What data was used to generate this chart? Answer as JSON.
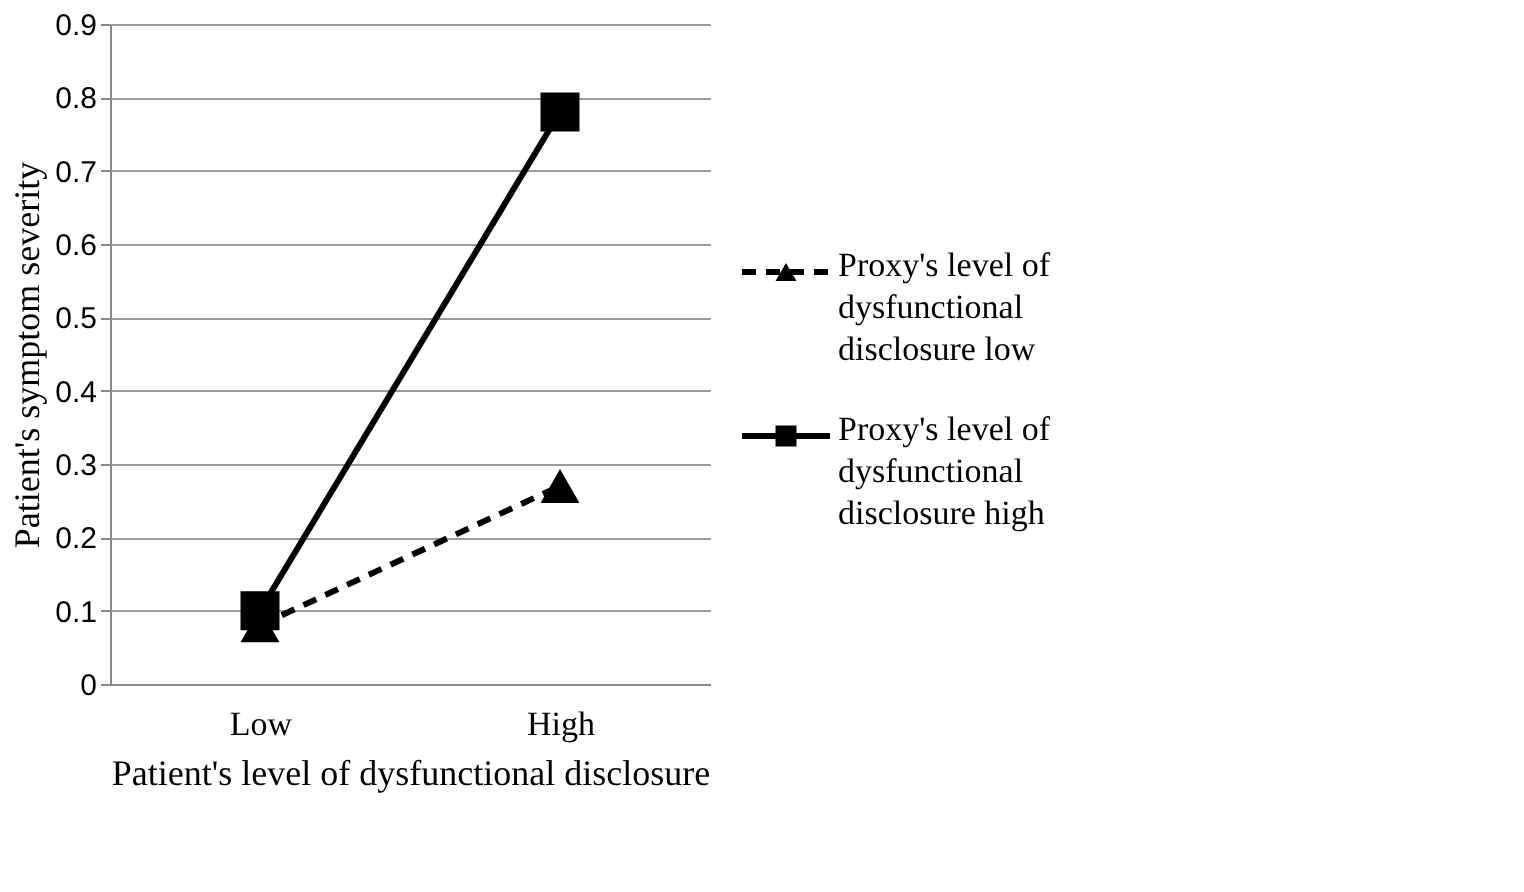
{
  "chart_data": {
    "type": "line",
    "xlabel": "Patient's level of dysfunctional disclosure",
    "ylabel": "Patient's symptom severity",
    "categories": [
      "Low",
      "High"
    ],
    "series": [
      {
        "name": "Proxy's level of dysfunctional disclosure low",
        "color": "#000000",
        "values": [
          0.08,
          0.27
        ],
        "marker": "triangle",
        "line_style": "dashed"
      },
      {
        "name": "Proxy's level of dysfunctional disclosure high",
        "color": "#000000",
        "values": [
          0.1,
          0.78
        ],
        "marker": "square",
        "line_style": "solid"
      }
    ],
    "ylim": [
      0,
      0.9
    ],
    "yticks": [
      0,
      0.1,
      0.2,
      0.3,
      0.4,
      0.5,
      0.6,
      0.7,
      0.8,
      0.9
    ],
    "grid": "y",
    "legend": "right"
  }
}
